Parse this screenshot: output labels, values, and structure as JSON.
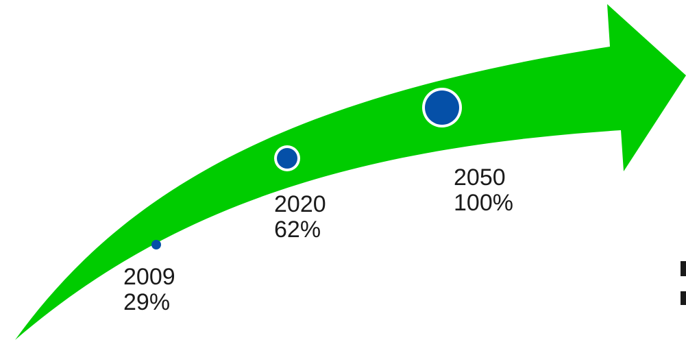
{
  "milestones": [
    {
      "year": "2009",
      "value": "29%"
    },
    {
      "year": "2020",
      "value": "62%"
    },
    {
      "year": "2050",
      "value": "100%"
    }
  ],
  "colors": {
    "arrow": "#00cc00",
    "marker_fill": "#0550a8",
    "marker_ring": "#ffffff",
    "text": "#1a1a1a"
  }
}
